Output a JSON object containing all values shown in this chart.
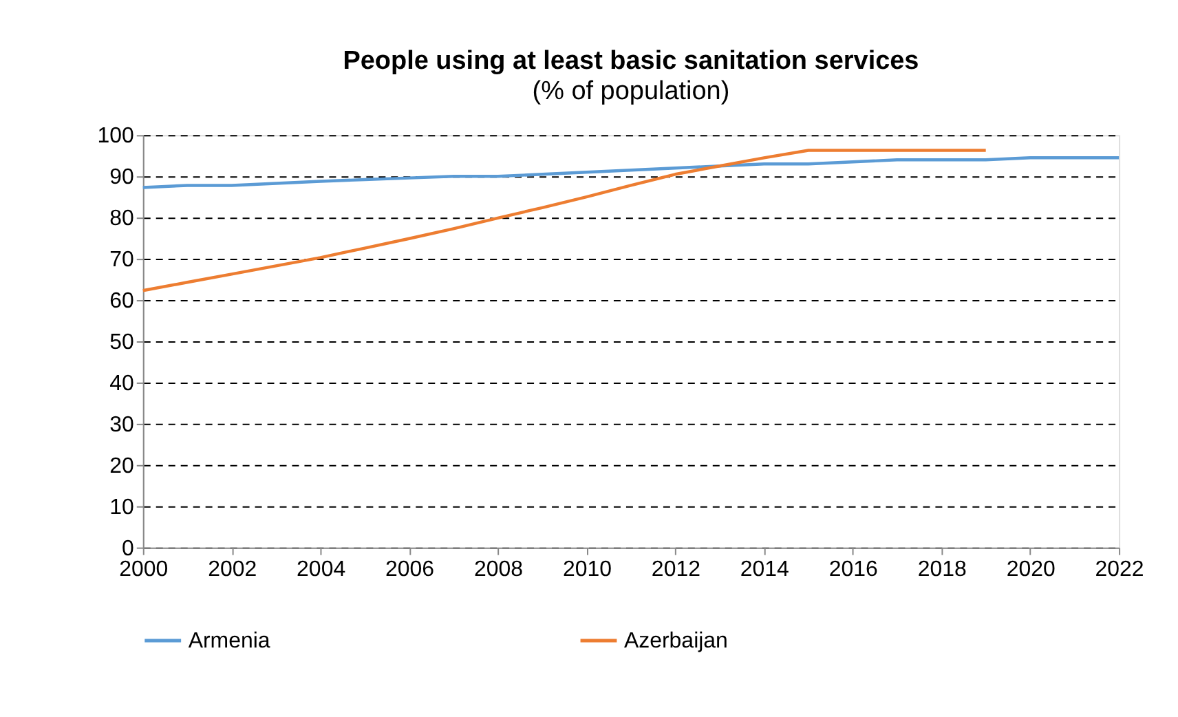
{
  "chart_data": {
    "type": "line",
    "title": "People using at least basic sanitation services",
    "subtitle": "(% of population)",
    "x": [
      2000,
      2001,
      2002,
      2003,
      2004,
      2005,
      2006,
      2007,
      2008,
      2009,
      2010,
      2011,
      2012,
      2013,
      2014,
      2015,
      2016,
      2017,
      2018,
      2019,
      2020,
      2021,
      2022
    ],
    "series": [
      {
        "name": "Armenia",
        "color": "#5b9bd5",
        "values": [
          87.3,
          87.8,
          87.8,
          88.3,
          88.8,
          89.2,
          89.6,
          90,
          90,
          90.5,
          91,
          91.5,
          92,
          92.5,
          93,
          93,
          93.5,
          94,
          94,
          94,
          94.5,
          94.5,
          94.5
        ]
      },
      {
        "name": "Azerbaijan",
        "color": "#ed7d31",
        "values": [
          62.3,
          64.3,
          66.3,
          68.3,
          70.3,
          72.6,
          74.9,
          77.3,
          79.9,
          82.4,
          85,
          87.8,
          90.5,
          92.5,
          94.5,
          96.3,
          96.3,
          96.3,
          96.3,
          96.3,
          null,
          null,
          null
        ]
      }
    ],
    "xlim": [
      2000,
      2022
    ],
    "xticks": [
      2000,
      2002,
      2004,
      2006,
      2008,
      2010,
      2012,
      2014,
      2016,
      2018,
      2020,
      2022
    ],
    "ylim": [
      0,
      100
    ],
    "yticks": [
      0,
      10,
      20,
      30,
      40,
      50,
      60,
      70,
      80,
      90,
      100
    ],
    "grid": "y",
    "legend": "bottom",
    "marker": "none",
    "line_style": "solid"
  }
}
